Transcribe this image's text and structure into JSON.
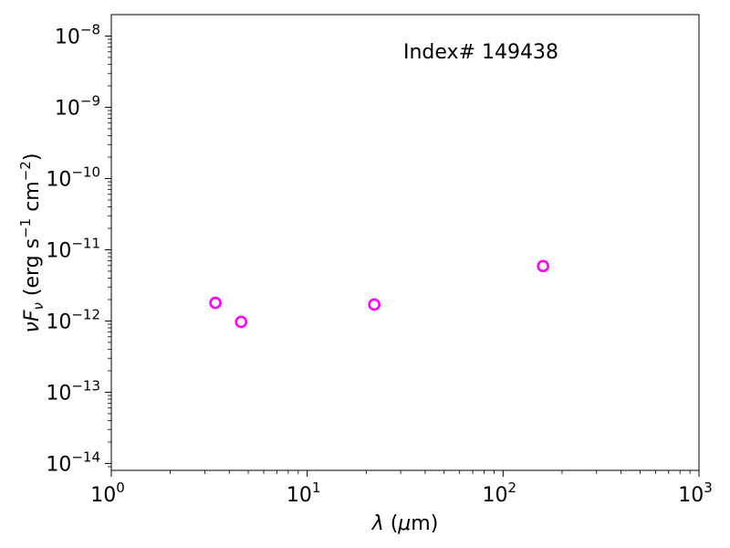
{
  "chart_data": {
    "type": "scatter",
    "annotation": "Index# 149438",
    "xlabel": {
      "italic": "λ",
      "text": " (",
      "mu": "μ",
      "unit": "m)"
    },
    "ylabel": {
      "nu": "ν",
      "F": "F",
      "sub": "ν",
      "text1": " (erg s",
      "exp1": "−1",
      "text2": " cm",
      "exp2": "−2",
      "text3": ")"
    },
    "x_scale": "log",
    "y_scale": "log",
    "xlim": [
      1,
      1000
    ],
    "ylim": [
      8e-15,
      2e-08
    ],
    "x_ticks": [
      {
        "value": 1,
        "base": "10",
        "exp": "0"
      },
      {
        "value": 10,
        "base": "10",
        "exp": "1"
      },
      {
        "value": 100,
        "base": "10",
        "exp": "2"
      },
      {
        "value": 1000,
        "base": "10",
        "exp": "3"
      }
    ],
    "y_ticks": [
      {
        "value": 1e-14,
        "base": "10",
        "exp": "−14"
      },
      {
        "value": 1e-13,
        "base": "10",
        "exp": "−13"
      },
      {
        "value": 1e-12,
        "base": "10",
        "exp": "−12"
      },
      {
        "value": 1e-11,
        "base": "10",
        "exp": "−11"
      },
      {
        "value": 1e-10,
        "base": "10",
        "exp": "−10"
      },
      {
        "value": 1e-09,
        "base": "10",
        "exp": "−9"
      },
      {
        "value": 1e-08,
        "base": "10",
        "exp": "−8"
      }
    ],
    "marker_color": "#ff00ff",
    "marker": "open-circle",
    "points": [
      {
        "x": 3.4,
        "y": 1.8e-12
      },
      {
        "x": 4.6,
        "y": 9.7e-13
      },
      {
        "x": 22,
        "y": 1.7e-12
      },
      {
        "x": 160,
        "y": 5.9e-12
      }
    ],
    "grid": false,
    "legend": "none"
  }
}
